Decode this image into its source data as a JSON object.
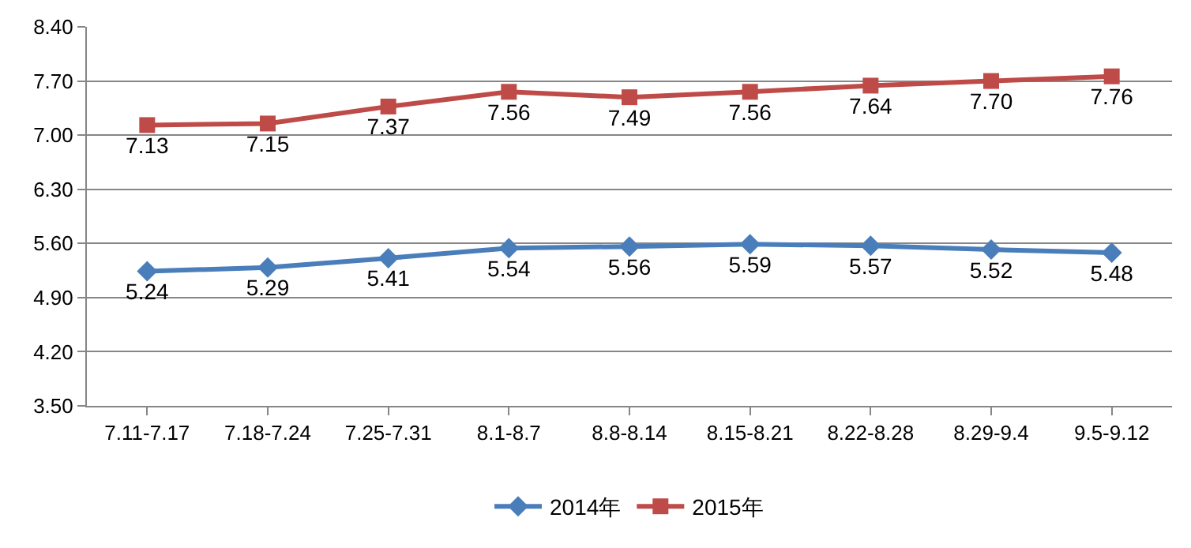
{
  "chart_data": {
    "type": "line",
    "categories": [
      "7.11-7.17",
      "7.18-7.24",
      "7.25-7.31",
      "8.1-8.7",
      "8.8-8.14",
      "8.15-8.21",
      "8.22-8.28",
      "8.29-9.4",
      "9.5-9.12"
    ],
    "series": [
      {
        "name": "2014年",
        "color": "#4a7ebb",
        "marker": "diamond",
        "values": [
          5.24,
          5.29,
          5.41,
          5.54,
          5.56,
          5.59,
          5.57,
          5.52,
          5.48
        ],
        "value_labels": [
          "5.24",
          "5.29",
          "5.41",
          "5.54",
          "5.56",
          "5.59",
          "5.57",
          "5.52",
          "5.48"
        ]
      },
      {
        "name": "2015年",
        "color": "#be4b48",
        "marker": "square",
        "values": [
          7.13,
          7.15,
          7.37,
          7.56,
          7.49,
          7.56,
          7.64,
          7.7,
          7.76
        ],
        "value_labels": [
          "7.13",
          "7.15",
          "7.37",
          "7.56",
          "7.49",
          "7.56",
          "7.64",
          "7.70",
          "7.76"
        ]
      }
    ],
    "ylim": [
      3.5,
      8.4
    ],
    "yticks": [
      {
        "value": 3.5,
        "label": "3.50"
      },
      {
        "value": 4.2,
        "label": "4.20"
      },
      {
        "value": 4.9,
        "label": "4.90"
      },
      {
        "value": 5.6,
        "label": "5.60"
      },
      {
        "value": 6.3,
        "label": "6.30"
      },
      {
        "value": 7.0,
        "label": "7.00"
      },
      {
        "value": 7.7,
        "label": "7.70"
      },
      {
        "value": 8.4,
        "label": "8.40"
      }
    ],
    "grid": "y",
    "legend": "bottom",
    "line_style": "solid"
  }
}
